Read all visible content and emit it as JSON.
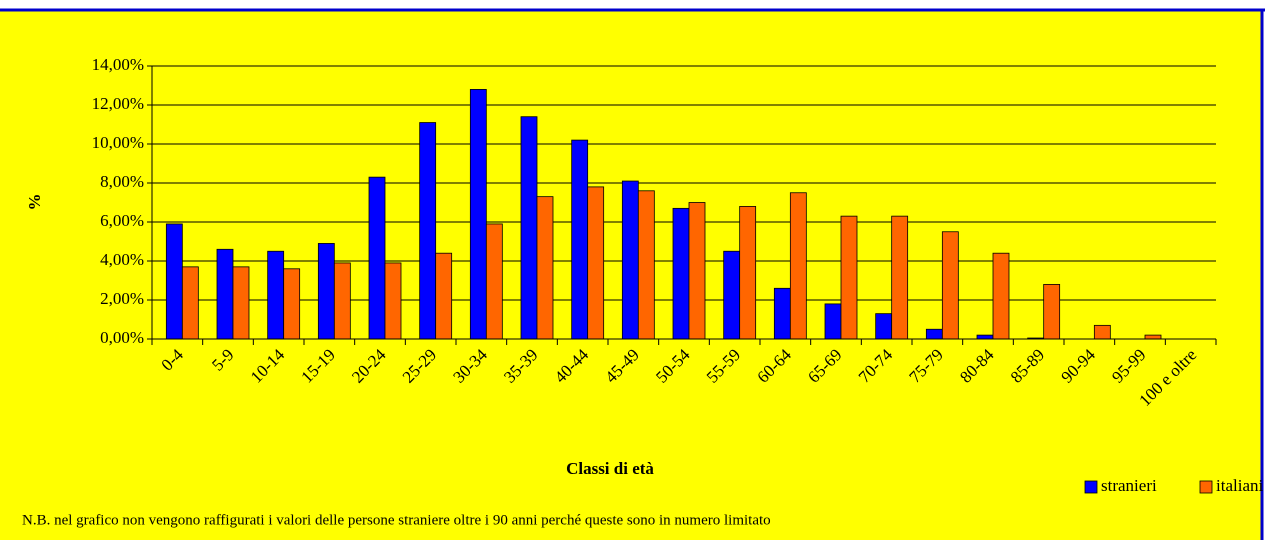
{
  "chart_data": {
    "type": "bar",
    "x_label": "Classi di età",
    "y_label": "%",
    "categories": [
      "0-4",
      "5-9",
      "10-14",
      "15-19",
      "20-24",
      "25-29",
      "30-34",
      "35-39",
      "40-44",
      "45-49",
      "50-54",
      "55-59",
      "60-64",
      "65-69",
      "70-74",
      "75-79",
      "80-84",
      "85-89",
      "90-94",
      "95-99",
      "100 e oltre"
    ],
    "series": [
      {
        "name": "stranieri",
        "color": "#0000ff",
        "values": [
          5.9,
          4.6,
          4.5,
          4.9,
          8.3,
          11.1,
          12.8,
          11.4,
          10.2,
          8.1,
          6.7,
          4.5,
          2.6,
          1.8,
          1.3,
          0.5,
          0.2,
          0.05,
          null,
          null,
          null
        ]
      },
      {
        "name": "italiani",
        "color": "#ff6600",
        "values": [
          3.7,
          3.7,
          3.6,
          3.9,
          3.9,
          4.4,
          5.9,
          7.3,
          7.8,
          7.6,
          7.0,
          6.8,
          7.5,
          6.3,
          6.3,
          5.5,
          4.4,
          2.8,
          0.7,
          0.2,
          0
        ]
      }
    ],
    "ylim": [
      0,
      14
    ],
    "yticks": [
      {
        "value": 0,
        "label": "0,00%"
      },
      {
        "value": 2,
        "label": "2,00%"
      },
      {
        "value": 4,
        "label": "4,00%"
      },
      {
        "value": 6,
        "label": "6,00%"
      },
      {
        "value": 8,
        "label": "8,00%"
      },
      {
        "value": 10,
        "label": "10,00%"
      },
      {
        "value": 12,
        "label": "12,00%"
      },
      {
        "value": 14,
        "label": "14,00%"
      }
    ],
    "grid": true,
    "legend": "bottom-right",
    "background": "#ffff00",
    "note": "N.B. nel grafico non vengono raffigurati i valori delle persone straniere oltre i 90 anni perché queste sono in numero limitato"
  }
}
